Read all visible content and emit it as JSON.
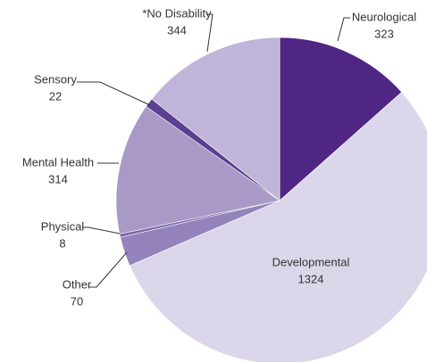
{
  "chart_data": {
    "type": "pie",
    "categories": [
      "Neurological",
      "Developmental",
      "Other",
      "Physical",
      "Mental Health",
      "Sensory",
      "*No Disability"
    ],
    "values": [
      323,
      1324,
      70,
      8,
      314,
      22,
      344
    ],
    "colors": [
      "#4f2683",
      "#dcd6ea",
      "#9483bb",
      "#7c6aab",
      "#a899c6",
      "#5b3f91",
      "#c0b5d8"
    ],
    "start_angle": 0,
    "direction": "clockwise"
  }
}
